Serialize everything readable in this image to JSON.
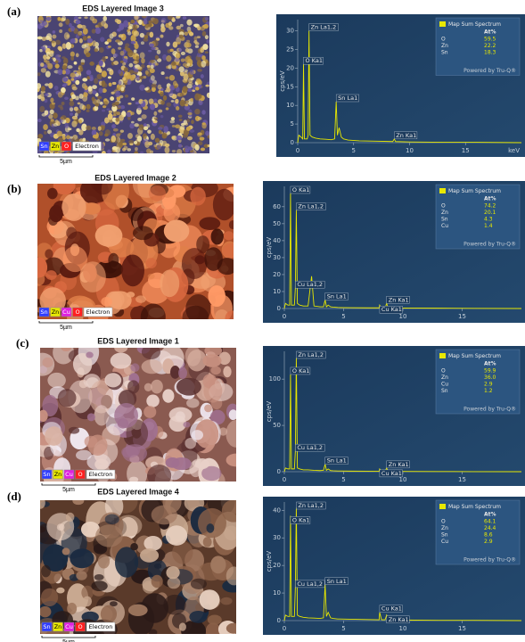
{
  "chart_data": [
    {
      "type": "line",
      "panel_label": "(a)",
      "image_title": "EDS Layered Image 3",
      "image_legend": [
        {
          "label": "Sn",
          "color": "#2f3cff"
        },
        {
          "label": "Zn",
          "color": "#e8e800"
        },
        {
          "label": "O",
          "color": "#ff2020"
        },
        {
          "label": "Electron",
          "color": "#ffffff"
        }
      ],
      "scale_bar": "5µm",
      "ylabel": "cps/eV",
      "xlabel": "keV",
      "xlim": [
        0,
        20
      ],
      "xticks": [
        0,
        5,
        10,
        15
      ],
      "ylim": [
        0,
        33
      ],
      "yticks": [
        0,
        5,
        10,
        15,
        20,
        25,
        30
      ],
      "series": [
        {
          "name": "Map Sum Spectrum",
          "color": "#e8e800",
          "x": [
            0,
            0.1,
            0.3,
            0.45,
            0.52,
            0.6,
            0.85,
            0.93,
            1.01,
            1.1,
            1.3,
            1.6,
            2.0,
            2.5,
            3.0,
            3.3,
            3.44,
            3.55,
            3.7,
            3.9,
            4.1,
            4.5,
            5.5,
            7,
            8.5,
            8.63,
            8.75,
            10,
            13,
            16,
            20
          ],
          "values": [
            0,
            2,
            1.5,
            1,
            21,
            1,
            1,
            2,
            30,
            2,
            1.5,
            1.2,
            1,
            0.9,
            0.8,
            1,
            11,
            2,
            4,
            1.5,
            1,
            0.7,
            0.5,
            0.4,
            0.3,
            1,
            0.3,
            0.2,
            0.1,
            0.1,
            0
          ]
        }
      ],
      "annotations": [
        {
          "text": "Zn La1,2",
          "x": 1.01
        },
        {
          "text": "O Ka1",
          "x": 0.52
        },
        {
          "text": "Sn La1",
          "x": 3.44
        },
        {
          "text": "Zn Ka1",
          "x": 8.63
        }
      ],
      "legend_box": {
        "title": "Map Sum Spectrum",
        "header": "At%",
        "rows": [
          [
            "O",
            "59.5"
          ],
          [
            "Zn",
            "22.2"
          ],
          [
            "Sn",
            "18.3"
          ]
        ],
        "footer": "Powered by Tru-Q®"
      }
    },
    {
      "type": "line",
      "panel_label": "(b)",
      "image_title": "EDS Layered Image 2",
      "image_legend": [
        {
          "label": "Sn",
          "color": "#2f3cff"
        },
        {
          "label": "Zn",
          "color": "#e8e800"
        },
        {
          "label": "Cu",
          "color": "#e020e0"
        },
        {
          "label": "O",
          "color": "#ff2020"
        },
        {
          "label": "Electron",
          "color": "#ffffff"
        }
      ],
      "scale_bar": "5µm",
      "ylabel": "cps/eV",
      "xlim": [
        0,
        20
      ],
      "xticks": [
        0,
        5,
        10,
        15
      ],
      "ylim": [
        0,
        72
      ],
      "yticks": [
        0,
        10,
        20,
        30,
        40,
        50,
        60
      ],
      "series": [
        {
          "name": "Map Sum Spectrum",
          "color": "#e8e800",
          "x": [
            0,
            0.1,
            0.3,
            0.45,
            0.52,
            0.6,
            0.85,
            0.93,
            1.01,
            1.1,
            1.3,
            1.6,
            2.0,
            2.3,
            2.5,
            3.0,
            3.3,
            3.44,
            3.55,
            3.7,
            3.9,
            4.1,
            4.5,
            5.5,
            7,
            8.0,
            8.04,
            8.2,
            8.5,
            8.63,
            8.75,
            10,
            13,
            16,
            20
          ],
          "values": [
            0,
            3,
            2,
            2,
            68,
            2,
            2,
            12,
            58,
            3,
            2,
            1.5,
            1.5,
            19,
            1.5,
            1,
            1,
            5,
            1,
            2,
            1,
            0.8,
            0.6,
            0.5,
            0.4,
            0.4,
            2,
            0.4,
            0.4,
            3,
            0.4,
            0.3,
            0.2,
            0.1,
            0
          ]
        }
      ],
      "annotations": [
        {
          "text": "O Ka1",
          "x": 0.52
        },
        {
          "text": "Zn La1,2",
          "x": 1.01
        },
        {
          "text": "Cu La1,2",
          "x": 0.93
        },
        {
          "text": "Sn La1",
          "x": 3.44
        },
        {
          "text": "Zn Ka1",
          "x": 8.63
        },
        {
          "text": "Cu Ka1",
          "x": 8.04
        }
      ],
      "legend_box": {
        "title": "Map Sum Spectrum",
        "header": "At%",
        "rows": [
          [
            "O",
            "74.2"
          ],
          [
            "Zn",
            "20.1"
          ],
          [
            "Sn",
            "4.3"
          ],
          [
            "Cu",
            "1.4"
          ]
        ],
        "footer": "Powered by Tru-Q®"
      }
    },
    {
      "type": "line",
      "panel_label": "(c)",
      "image_title": "EDS Layered Image 1",
      "image_legend": [
        {
          "label": "Sn",
          "color": "#2f3cff"
        },
        {
          "label": "Zn",
          "color": "#e8e800"
        },
        {
          "label": "Cu",
          "color": "#e020e0"
        },
        {
          "label": "O",
          "color": "#ff2020"
        },
        {
          "label": "Electron",
          "color": "#ffffff"
        }
      ],
      "scale_bar": "5µm",
      "ylabel": "cps/eV",
      "xlim": [
        0,
        20
      ],
      "xticks": [
        0,
        5,
        10,
        15
      ],
      "ylim": [
        0,
        130
      ],
      "yticks": [
        0,
        50,
        100
      ],
      "series": [
        {
          "name": "Map Sum Spectrum",
          "color": "#e8e800",
          "x": [
            0,
            0.1,
            0.3,
            0.45,
            0.52,
            0.6,
            0.85,
            0.93,
            1.01,
            1.1,
            1.3,
            1.6,
            2.0,
            2.5,
            3.0,
            3.3,
            3.44,
            3.55,
            3.7,
            3.9,
            4.1,
            4.5,
            5.5,
            7,
            8.0,
            8.04,
            8.2,
            8.5,
            8.63,
            8.75,
            10,
            13,
            16,
            20
          ],
          "values": [
            0,
            4,
            3,
            3,
            105,
            3,
            3,
            22,
            123,
            4,
            3,
            2,
            2,
            1.5,
            1.2,
            1.5,
            8,
            1.5,
            3,
            1.2,
            1,
            0.8,
            0.6,
            0.5,
            0.4,
            3,
            0.4,
            0.4,
            4,
            0.4,
            0.3,
            0.2,
            0.1,
            0
          ]
        }
      ],
      "annotations": [
        {
          "text": "Zn La1,2",
          "x": 1.01
        },
        {
          "text": "O Ka1",
          "x": 0.52
        },
        {
          "text": "Cu La1,2",
          "x": 0.93
        },
        {
          "text": "Sn La1",
          "x": 3.44
        },
        {
          "text": "Zn Ka1",
          "x": 8.63
        },
        {
          "text": "Cu Ka1",
          "x": 8.04
        }
      ],
      "legend_box": {
        "title": "Map Sum Spectrum",
        "header": "At%",
        "rows": [
          [
            "O",
            "59.9"
          ],
          [
            "Zn",
            "36.0"
          ],
          [
            "Cu",
            "2.9"
          ],
          [
            "Sn",
            "1.2"
          ]
        ],
        "footer": "Powered by Tru-Q®"
      }
    },
    {
      "type": "line",
      "panel_label": "(d)",
      "image_title": "EDS Layered Image 4",
      "image_legend": [
        {
          "label": "Sn",
          "color": "#2f3cff"
        },
        {
          "label": "Zn",
          "color": "#e8e800"
        },
        {
          "label": "Cu",
          "color": "#e020e0"
        },
        {
          "label": "O",
          "color": "#ff2020"
        },
        {
          "label": "Electron",
          "color": "#ffffff"
        }
      ],
      "scale_bar": "5µm",
      "ylabel": "cps/eV",
      "xlim": [
        0,
        20
      ],
      "xticks": [
        0,
        5,
        10,
        15
      ],
      "ylim": [
        0,
        43
      ],
      "yticks": [
        0,
        10,
        20,
        30,
        40
      ],
      "series": [
        {
          "name": "Map Sum Spectrum",
          "color": "#e8e800",
          "x": [
            0,
            0.1,
            0.3,
            0.45,
            0.52,
            0.6,
            0.85,
            0.93,
            1.01,
            1.1,
            1.3,
            1.6,
            2.0,
            2.5,
            3.0,
            3.3,
            3.44,
            3.55,
            3.7,
            3.9,
            4.1,
            4.5,
            5.5,
            7,
            8.0,
            8.04,
            8.2,
            8.5,
            8.63,
            8.75,
            10,
            13,
            16,
            20
          ],
          "values": [
            0,
            2,
            1.5,
            1.5,
            38,
            1.5,
            1.5,
            12,
            41,
            2,
            1.5,
            1.2,
            1,
            0.9,
            0.8,
            1,
            13,
            1.5,
            3,
            1,
            0.8,
            0.6,
            0.5,
            0.4,
            0.3,
            3,
            0.3,
            0.3,
            2,
            0.3,
            0.2,
            0.1,
            0.1,
            0
          ]
        }
      ],
      "annotations": [
        {
          "text": "Zn La1,2",
          "x": 1.01
        },
        {
          "text": "O Ka1",
          "x": 0.52
        },
        {
          "text": "Cu La1,2",
          "x": 0.93
        },
        {
          "text": "Sn La1",
          "x": 3.44
        },
        {
          "text": "Cu Ka1",
          "x": 8.04
        },
        {
          "text": "Zn Ka1",
          "x": 8.63
        }
      ],
      "legend_box": {
        "title": "Map Sum Spectrum",
        "header": "At%",
        "rows": [
          [
            "O",
            "64.1"
          ],
          [
            "Zn",
            "24.4"
          ],
          [
            "Sn",
            "8.6"
          ],
          [
            "Cu",
            "2.9"
          ]
        ],
        "footer": "Powered by Tru-Q®"
      }
    }
  ]
}
